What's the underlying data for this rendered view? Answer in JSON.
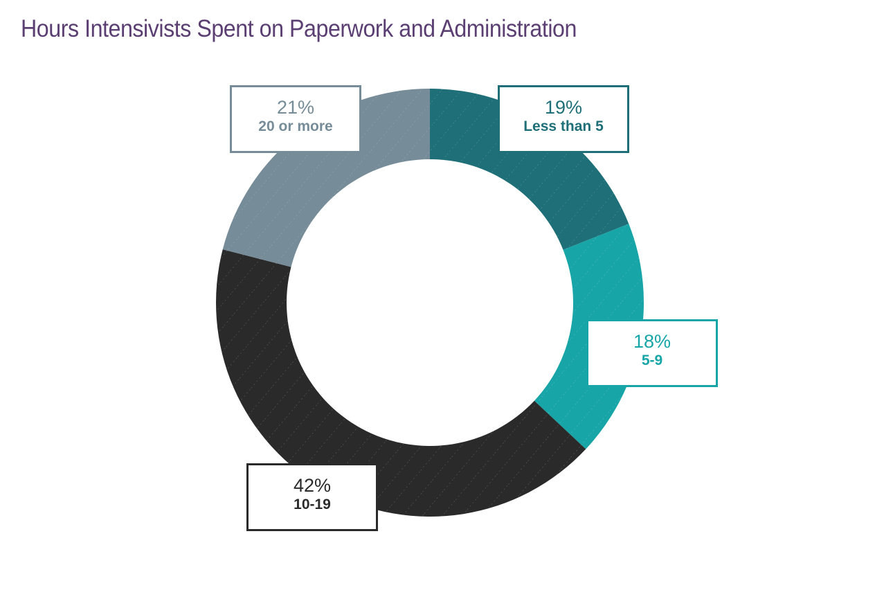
{
  "title": "Hours Intensivists Spent on Paperwork and Administration",
  "chart_data": {
    "type": "pie",
    "donut": true,
    "title": "Hours Intensivists Spent on Paperwork and Administration",
    "start": "12 o'clock, clockwise",
    "slices": [
      {
        "label": "Less than 5",
        "value": 19,
        "value_label": "19%",
        "color": "#1f6f78"
      },
      {
        "label": "5-9",
        "value": 18,
        "value_label": "18%",
        "color": "#18a5a7"
      },
      {
        "label": "10-19",
        "value": 42,
        "value_label": "42%",
        "color": "#2a2a2b"
      },
      {
        "label": "20 or more",
        "value": 21,
        "value_label": "21%",
        "color": "#768c98"
      }
    ]
  }
}
